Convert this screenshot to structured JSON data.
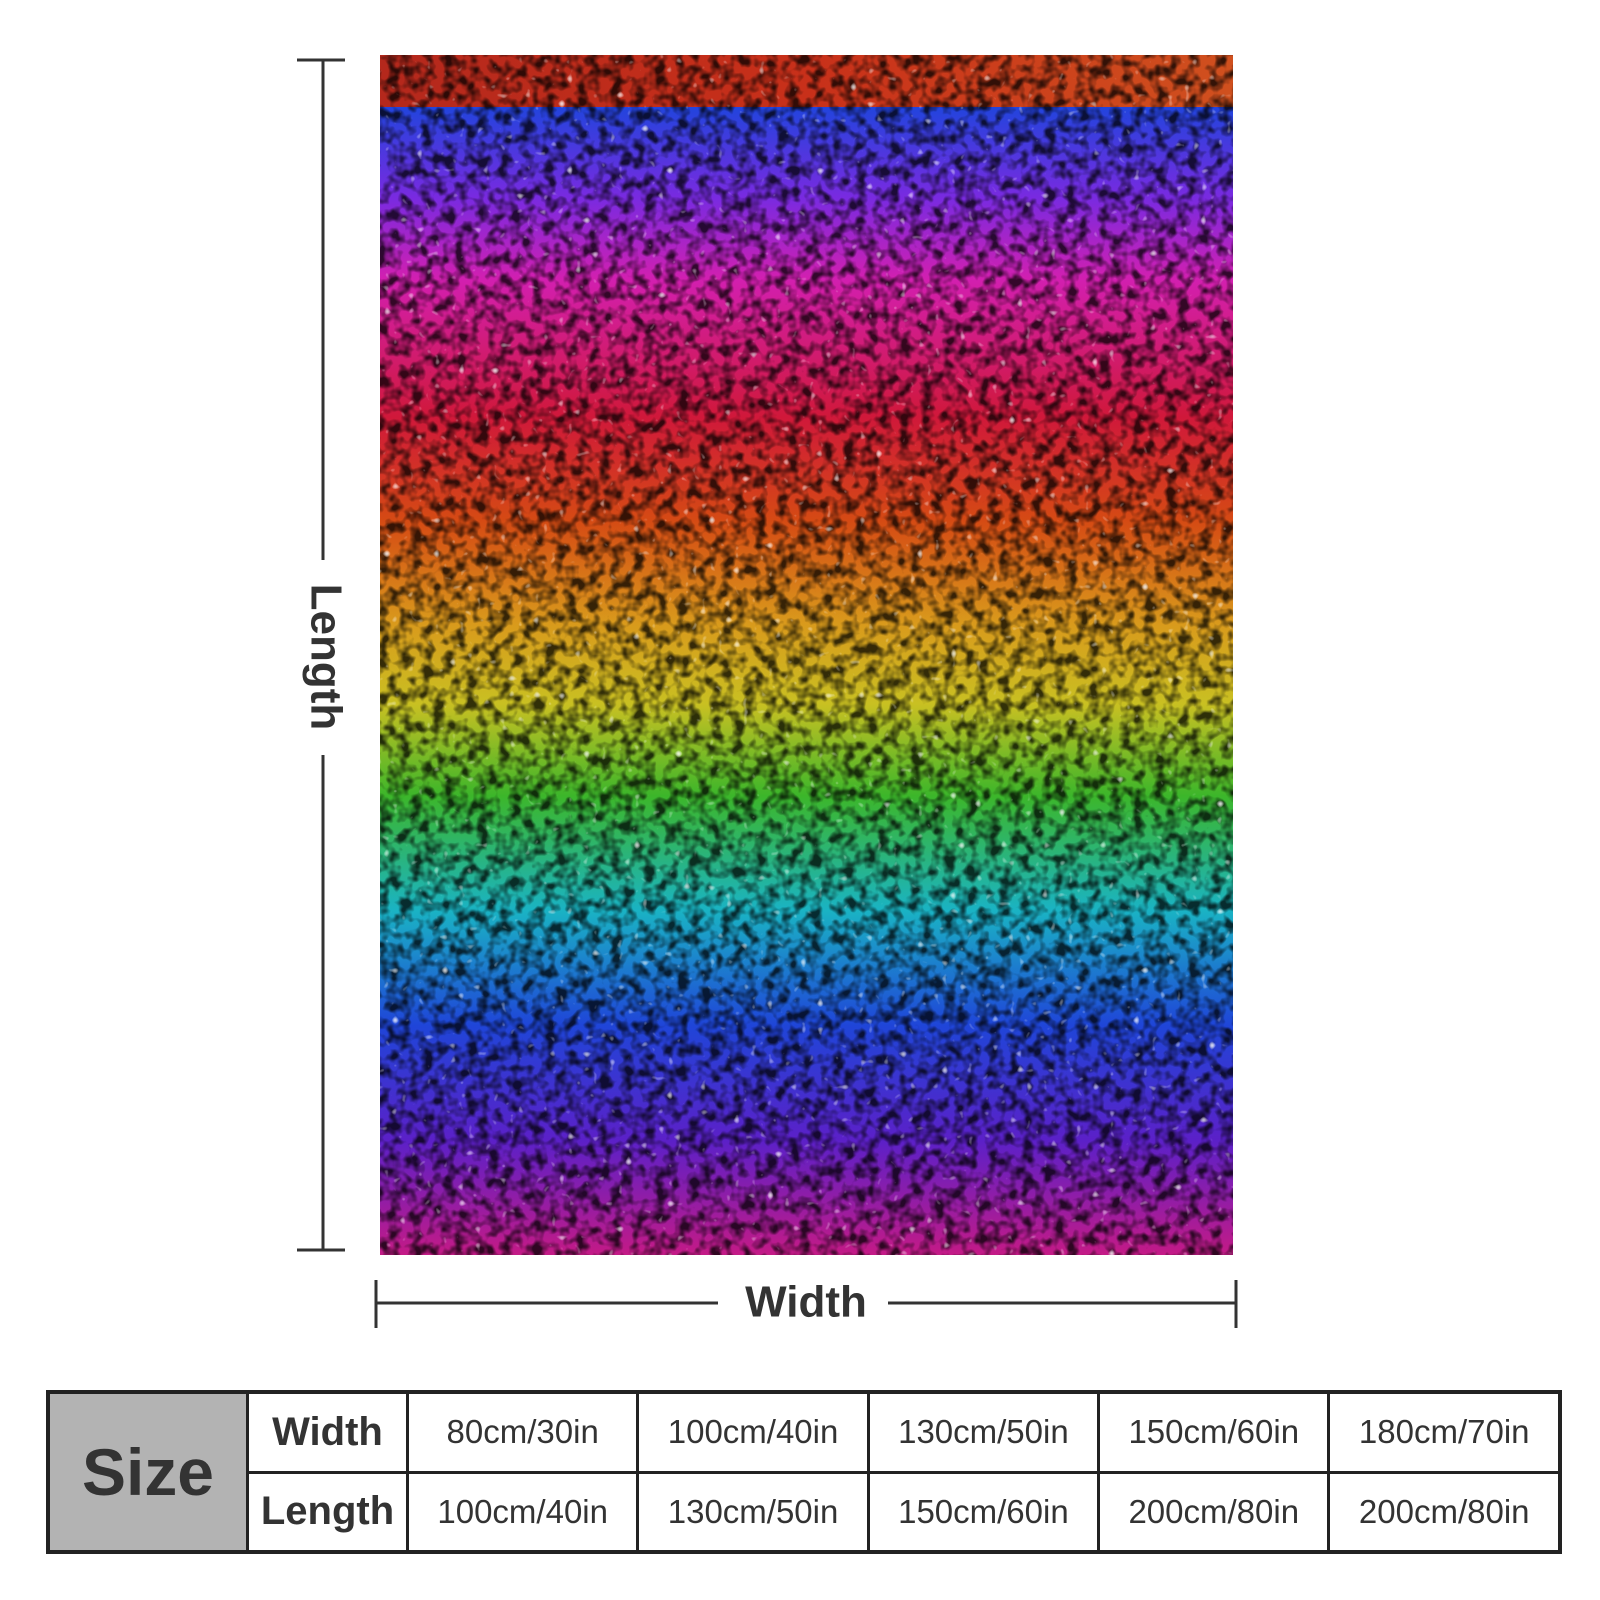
{
  "dimension_labels": {
    "length": "Length",
    "width": "Width"
  },
  "table": {
    "header": "Size",
    "rows": [
      {
        "label": "Width",
        "values": [
          "80cm/30in",
          "100cm/40in",
          "130cm/50in",
          "150cm/60in",
          "180cm/70in"
        ]
      },
      {
        "label": "Length",
        "values": [
          "100cm/40in",
          "130cm/50in",
          "150cm/60in",
          "200cm/80in",
          "200cm/80in"
        ]
      }
    ]
  }
}
